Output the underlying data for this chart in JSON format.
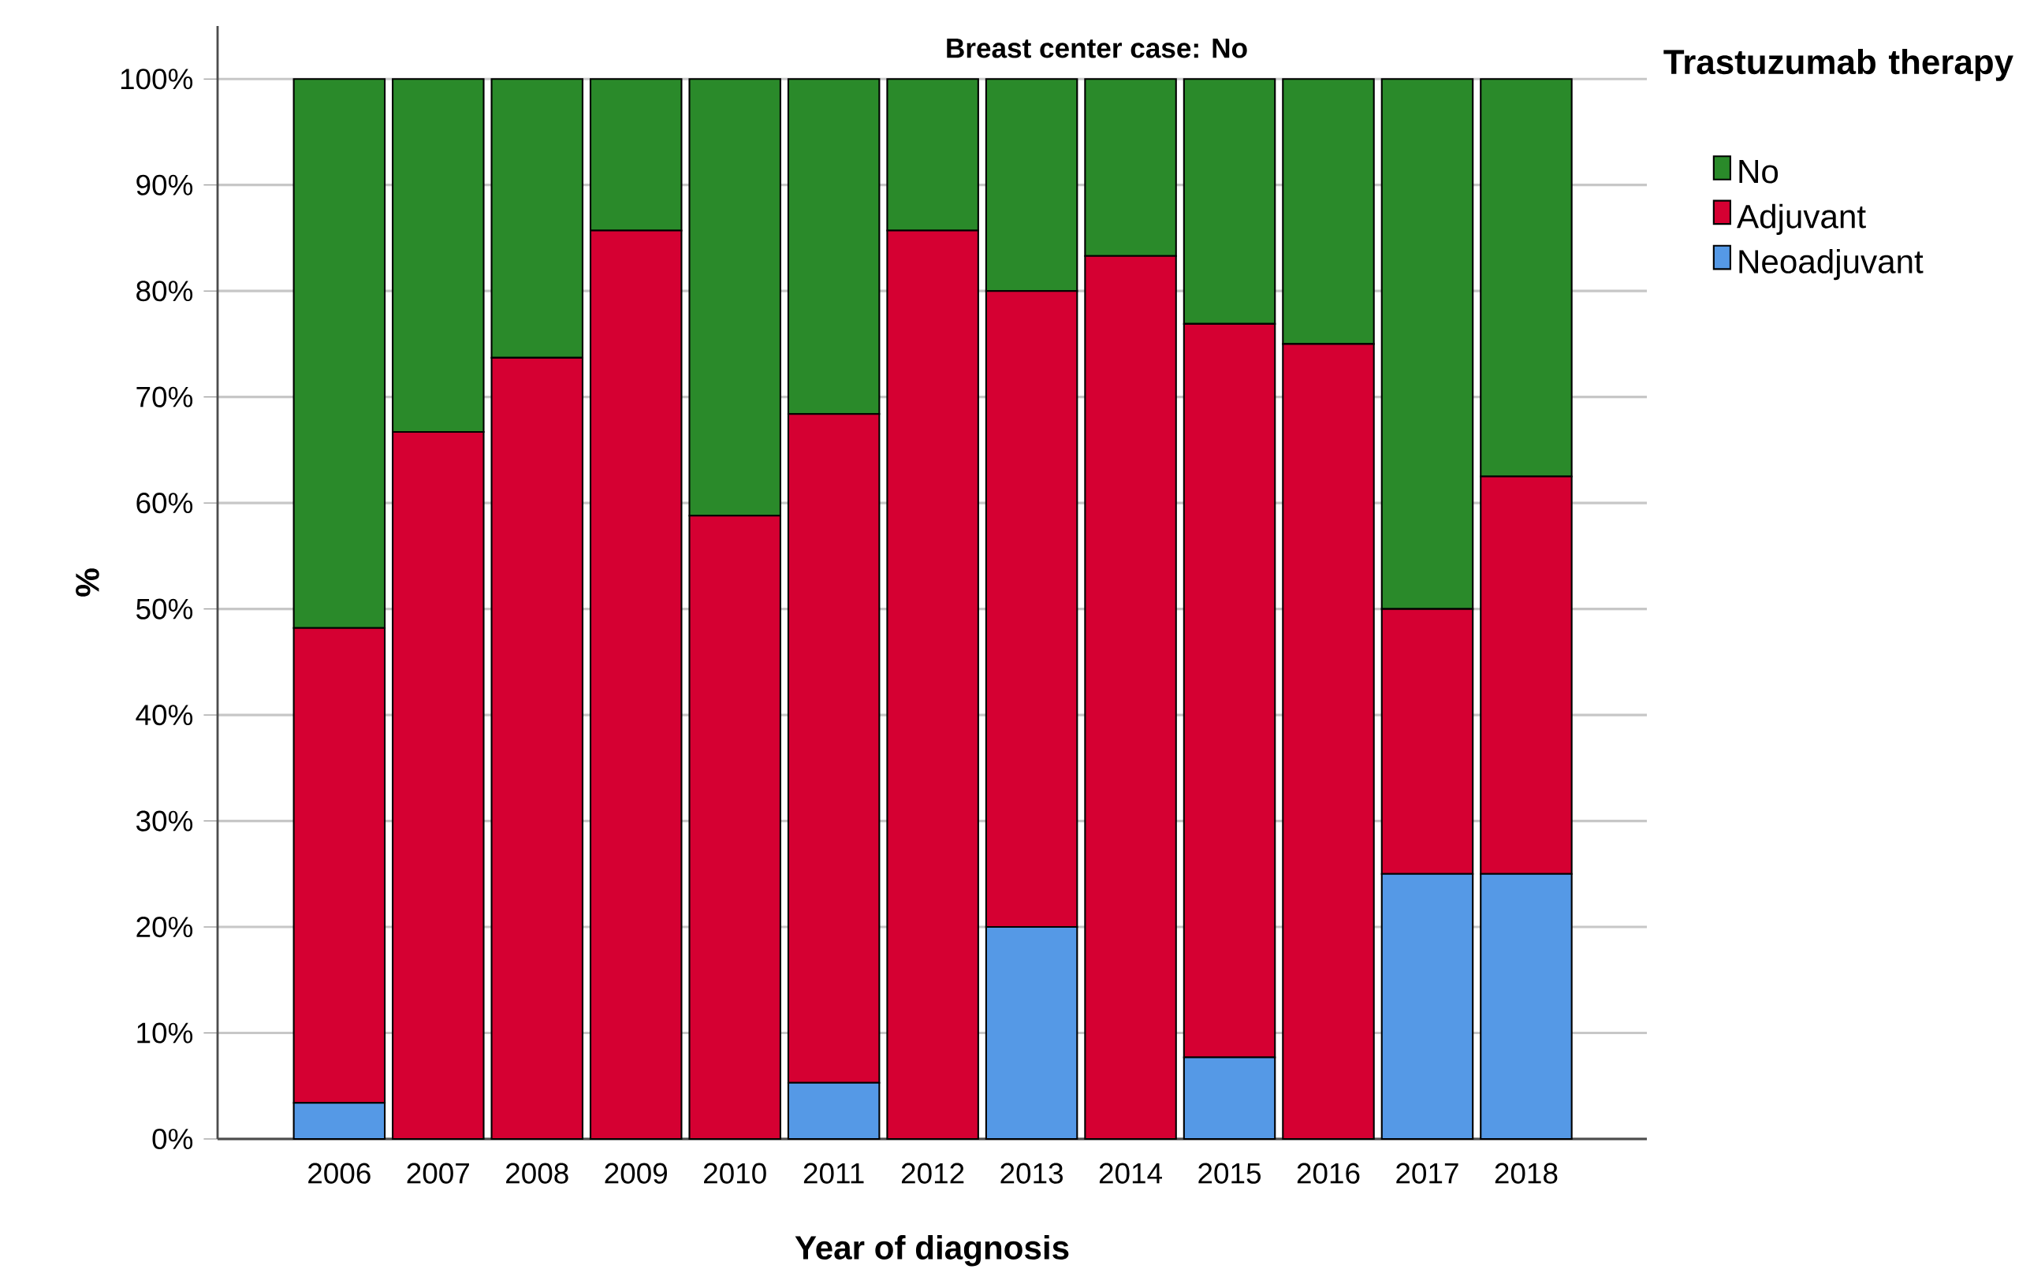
{
  "chart_data": {
    "type": "bar",
    "stacked": true,
    "title": "Breast center case: No",
    "xlabel": "Year of diagnosis",
    "ylabel": "%",
    "legend_title": "Trastuzumab therapy",
    "legend": "top right",
    "grid": "y",
    "categories": [
      "2006",
      "2007",
      "2008",
      "2009",
      "2010",
      "2011",
      "2012",
      "2013",
      "2014",
      "2015",
      "2016",
      "2017",
      "2018"
    ],
    "ylim": [
      0,
      105
    ],
    "yticks": [
      {
        "value": 0,
        "label": "0%"
      },
      {
        "value": 10,
        "label": "10%"
      },
      {
        "value": 20,
        "label": "20%"
      },
      {
        "value": 30,
        "label": "30%"
      },
      {
        "value": 40,
        "label": "40%"
      },
      {
        "value": 50,
        "label": "50%"
      },
      {
        "value": 60,
        "label": "60%"
      },
      {
        "value": 70,
        "label": "70%"
      },
      {
        "value": 80,
        "label": "80%"
      },
      {
        "value": 90,
        "label": "90%"
      },
      {
        "value": 100,
        "label": "100%"
      }
    ],
    "series": [
      {
        "name": "Neoadjuvant",
        "color": "#5599e6",
        "values": [
          3.4,
          0,
          0,
          0,
          0,
          5.3,
          0,
          20,
          0,
          7.7,
          0,
          25,
          25
        ]
      },
      {
        "name": "Adjuvant",
        "color": "#d50032",
        "values": [
          44.8,
          66.7,
          73.7,
          85.7,
          58.8,
          63.1,
          85.7,
          60,
          83.3,
          69.2,
          75,
          25,
          37.5
        ]
      },
      {
        "name": "No",
        "color": "#2a8a2a",
        "values": [
          51.8,
          33.3,
          26.3,
          14.3,
          41.2,
          31.6,
          14.3,
          20,
          16.7,
          23.1,
          25,
          50,
          37.5
        ]
      }
    ]
  }
}
